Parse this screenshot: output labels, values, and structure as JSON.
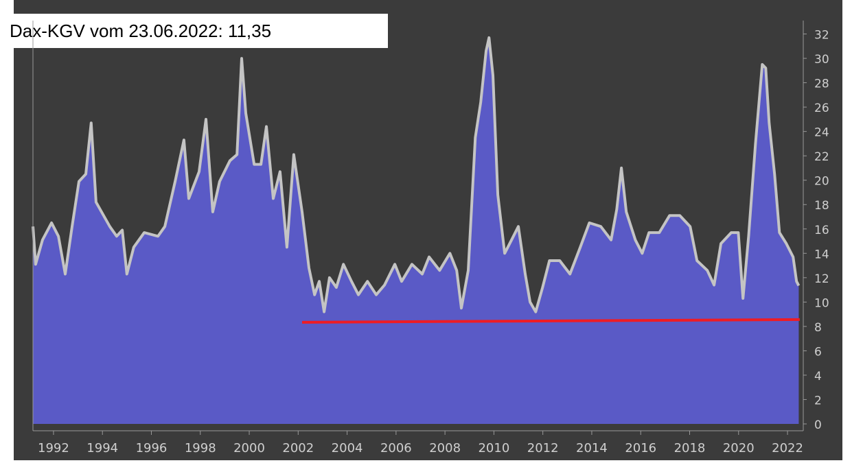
{
  "chart_data": {
    "type": "area",
    "title": "Dax-KGV vom 23.06.2022: 11,35",
    "x": [
      1991.16,
      1991.27,
      1991.55,
      1991.92,
      1992.2,
      1992.48,
      1992.76,
      1993.04,
      1993.32,
      1993.54,
      1993.74,
      1994.3,
      1994.58,
      1994.81,
      1995.0,
      1995.28,
      1995.71,
      1996.27,
      1996.55,
      1996.97,
      1997.33,
      1997.53,
      1997.95,
      1998.23,
      1998.51,
      1998.79,
      1999.21,
      1999.5,
      1999.69,
      1999.86,
      2000.2,
      2000.48,
      2000.7,
      2000.98,
      2001.26,
      2001.54,
      2001.82,
      2002.16,
      2002.44,
      2002.67,
      2002.86,
      2003.06,
      2003.28,
      2003.56,
      2003.85,
      2004.18,
      2004.46,
      2004.83,
      2005.19,
      2005.53,
      2005.95,
      2006.23,
      2006.65,
      2007.07,
      2007.35,
      2007.78,
      2008.2,
      2008.48,
      2008.67,
      2008.95,
      2009.24,
      2009.46,
      2009.68,
      2009.8,
      2009.96,
      2010.16,
      2010.44,
      2010.72,
      2011.0,
      2011.28,
      2011.48,
      2011.71,
      2011.99,
      2012.27,
      2012.69,
      2013.11,
      2013.53,
      2013.9,
      2014.37,
      2014.79,
      2015.02,
      2015.21,
      2015.41,
      2015.78,
      2016.06,
      2016.34,
      2016.76,
      2017.18,
      2017.6,
      2018.02,
      2018.3,
      2018.72,
      2019.0,
      2019.28,
      2019.7,
      2019.99,
      2020.18,
      2020.41,
      2020.69,
      2020.97,
      2021.11,
      2021.25,
      2021.47,
      2021.67,
      2021.95,
      2022.23,
      2022.37,
      2022.46
    ],
    "values": [
      16.2,
      13.1,
      15.1,
      16.5,
      15.4,
      12.3,
      16.2,
      19.9,
      20.5,
      24.7,
      18.2,
      16.2,
      15.4,
      15.9,
      12.3,
      14.5,
      15.7,
      15.4,
      16.2,
      19.9,
      23.3,
      18.5,
      20.7,
      25,
      17.4,
      19.9,
      21.6,
      22.1,
      30,
      25.5,
      21.3,
      21.3,
      24.4,
      18.5,
      20.7,
      14.5,
      22.1,
      17.4,
      12.8,
      10.6,
      11.7,
      9.2,
      12,
      11.2,
      13.1,
      11.7,
      10.6,
      11.7,
      10.6,
      11.4,
      13.1,
      11.7,
      13.1,
      12.3,
      13.7,
      12.6,
      14,
      12.6,
      9.5,
      12.6,
      23.5,
      26.4,
      30.6,
      31.7,
      28.6,
      18.8,
      14,
      15.1,
      16.2,
      12.3,
      10,
      9.2,
      11.2,
      13.4,
      13.4,
      12.3,
      14.5,
      16.5,
      16.2,
      15.1,
      17.6,
      21,
      17.4,
      15.1,
      14,
      15.7,
      15.7,
      17.1,
      17.1,
      16.2,
      13.4,
      12.6,
      11.4,
      14.8,
      15.7,
      15.7,
      10.3,
      15.4,
      23,
      29.5,
      29.2,
      24.7,
      20.5,
      15.7,
      14.8,
      13.7,
      11.7,
      11.35
    ],
    "color": "#5a5ac6",
    "line_color": "#c4c4c4",
    "reference_line": {
      "x": [
        2002.16,
        2022.5
      ],
      "values": [
        8.34,
        8.56
      ],
      "color": "#ee1c24"
    },
    "xlim": [
      1991.16,
      2022.56
    ],
    "ylim": [
      0,
      33.1
    ],
    "xticks": [
      1992,
      1994,
      1996,
      1998,
      2000,
      2002,
      2004,
      2006,
      2008,
      2010,
      2012,
      2014,
      2016,
      2018,
      2020,
      2022
    ],
    "yticks": [
      0,
      2,
      4,
      6,
      8,
      10,
      12,
      14,
      16,
      18,
      20,
      22,
      24,
      26,
      28,
      30,
      32
    ]
  }
}
